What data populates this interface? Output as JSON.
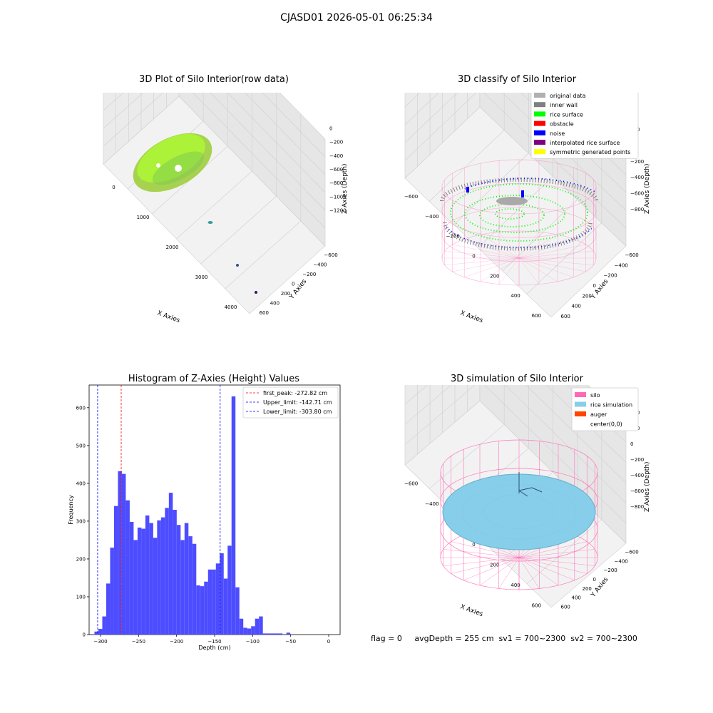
{
  "suptitle": "CJASD01 2026-05-01 06:25:34",
  "colors": {
    "grid": "#cfcfcf",
    "pane": "#f2f2f2",
    "hist_bar": "#4d4dff",
    "first_peak_line": "#ff0000",
    "limit_line": "#0000ff",
    "silo": "#ff69b4",
    "rice": "#87ceeb",
    "auger": "#ff4500",
    "original": "#b0b0b0",
    "inner_wall": "#808080",
    "rice_surface": "#00ff00",
    "obstacle": "#ff0000",
    "noise": "#0000ff",
    "interp": "#800080",
    "symmetric": "#ffff00",
    "raw_surface": "#9acd32"
  },
  "panels": {
    "raw": {
      "title": "3D Plot of Silo Interior(row data)",
      "xlabel": "X Axies",
      "ylabel": "Y Axies",
      "zlabel": "Z Axies (Depth)",
      "xticks": [
        "0",
        "1000",
        "2000",
        "3000",
        "4000"
      ],
      "yticks": [
        "−600",
        "−400",
        "−200",
        "0",
        "200",
        "400",
        "600"
      ],
      "zticks": [
        "0",
        "−200",
        "−400",
        "−600",
        "−800",
        "−1000",
        "−1200"
      ]
    },
    "classify": {
      "title": "3D classify of Silo Interior",
      "xlabel": "X Axies",
      "ylabel": "Y Axies",
      "zlabel": "Z Axies (Depth)",
      "xticks": [
        "−600",
        "−400",
        "−200",
        "0",
        "200",
        "400",
        "600"
      ],
      "yticks": [
        "−600",
        "−400",
        "−200",
        "0",
        "200",
        "400",
        "600"
      ],
      "zticks": [
        "200",
        "0",
        "−200",
        "−400",
        "−600",
        "−800"
      ],
      "legend": [
        {
          "label": "original data",
          "color": "#b0b0b0"
        },
        {
          "label": "inner wall",
          "color": "#808080"
        },
        {
          "label": "rice surface",
          "color": "#00ff00"
        },
        {
          "label": "obstacle",
          "color": "#ff0000"
        },
        {
          "label": "noise",
          "color": "#0000ff"
        },
        {
          "label": "interpolated rice surface",
          "color": "#800080"
        },
        {
          "label": "symmetric generated points",
          "color": "#ffff00"
        }
      ]
    },
    "simulation": {
      "title": "3D simulation of Silo Interior",
      "xlabel": "X Axies",
      "ylabel": "Y Axies",
      "zlabel": "Z Axies (Depth)",
      "xticks": [
        "−600",
        "−400",
        "−200",
        "0",
        "200",
        "400",
        "600"
      ],
      "yticks": [
        "−600",
        "−400",
        "−200",
        "0",
        "200",
        "400",
        "600"
      ],
      "zticks": [
        "400",
        "200",
        "0",
        "−200",
        "−400",
        "−600",
        "−800"
      ],
      "legend": [
        {
          "label": "silo",
          "color": "#ff69b4"
        },
        {
          "label": "rice simulation",
          "color": "#87ceeb"
        },
        {
          "label": "auger",
          "color": "#ff4500"
        },
        {
          "label": "center(0,0)",
          "color": ""
        }
      ]
    }
  },
  "footer": "flag = 0     avgDepth = 255 cm  sv1 = 700~2300  sv2 = 700~2300",
  "chart_data": {
    "type": "bar",
    "title": "Histogram of Z-Axies (Height) Values",
    "xlabel": "Depth (cm)",
    "ylabel": "Frequency",
    "xlim": [
      -315,
      15
    ],
    "ylim": [
      0,
      660
    ],
    "xticks": [
      -300,
      -250,
      -200,
      -150,
      -100,
      -50,
      0
    ],
    "yticks": [
      0,
      100,
      200,
      300,
      400,
      500,
      600
    ],
    "bin_start": -308,
    "bin_width": 5.15,
    "values": [
      8,
      15,
      48,
      135,
      230,
      340,
      432,
      425,
      355,
      298,
      250,
      283,
      280,
      315,
      295,
      256,
      302,
      310,
      335,
      375,
      330,
      290,
      250,
      295,
      260,
      240,
      130,
      128,
      140,
      172,
      172,
      188,
      215,
      148,
      235,
      630,
      125,
      42,
      18,
      16,
      22,
      42,
      48,
      3,
      3,
      3,
      3,
      3,
      0,
      5
    ],
    "vlines": [
      {
        "label": "first_peak: -272.82 cm",
        "x": -272.82,
        "color": "#ff0000"
      },
      {
        "label": "Upper_limit: -142.71 cm",
        "x": -142.71,
        "color": "#0000ff"
      },
      {
        "label": "Lower_limit: -303.80 cm",
        "x": -303.8,
        "color": "#0000ff"
      }
    ]
  }
}
